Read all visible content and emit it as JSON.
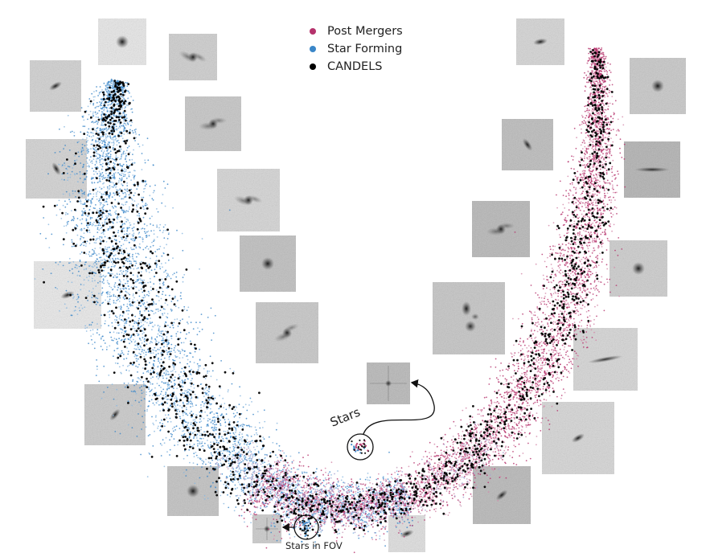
{
  "chart_data": {
    "type": "scatter",
    "title": "",
    "xlabel": "",
    "ylabel": "",
    "grid": false,
    "legend_position": "top-center",
    "series": [
      {
        "name": "Post Mergers",
        "color": "#b5326c",
        "marker": "point"
      },
      {
        "name": "Star Forming",
        "color": "#3a86c8",
        "marker": "point"
      },
      {
        "name": "CANDELS",
        "color": "#000000",
        "marker": "dot"
      }
    ],
    "annotations": [
      {
        "text": "Stars",
        "kind": "cluster-callout"
      },
      {
        "text": "Stars in FOV",
        "kind": "cluster-callout"
      }
    ],
    "galaxy_cutouts": 25
  }
}
